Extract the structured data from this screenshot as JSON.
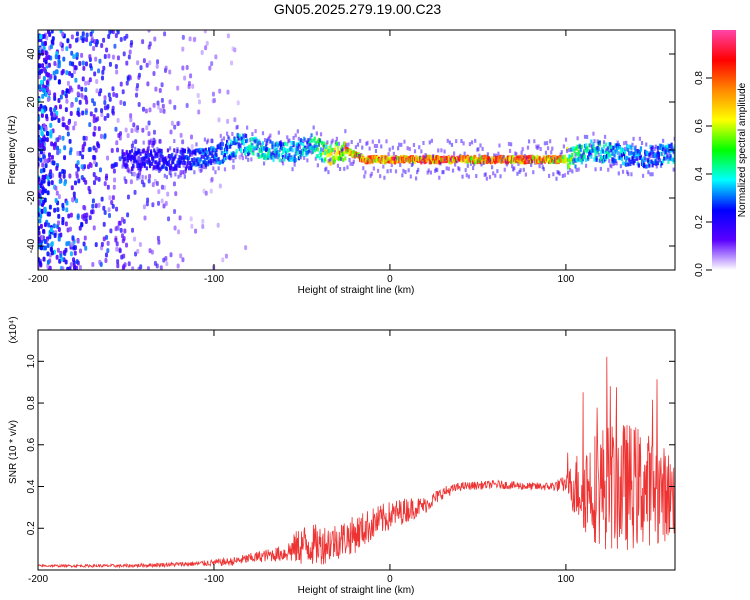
{
  "title": "GN05.2025.279.19.00.C23",
  "chart_data": [
    {
      "type": "heatmap",
      "name": "spectrogram",
      "xlabel": "Height of straight line (km)",
      "ylabel": "Frequency (Hz)",
      "xlim": [
        -200,
        162
      ],
      "ylim": [
        -50,
        50
      ],
      "xticks": [
        -200,
        -100,
        0,
        100
      ],
      "yticks": [
        -40,
        -20,
        0,
        20,
        40
      ],
      "colorbar": {
        "label": "Normalized spectral amplitude",
        "range": [
          0.0,
          1.0
        ],
        "ticks": [
          0.0,
          0.2,
          0.4,
          0.6,
          0.8
        ],
        "tick_labels": [
          "0.0",
          "0.2",
          "0.4",
          "0.6",
          "0.8"
        ],
        "colors": [
          "#ffffff",
          "#5a00ff",
          "#0000ff",
          "#00ffff",
          "#00ff00",
          "#ffff00",
          "#ff8800",
          "#ff0000",
          "#ff44aa"
        ]
      },
      "ridge": {
        "description_points_x": [
          -150,
          -120,
          -100,
          -85,
          -70,
          -55,
          -45,
          -35,
          -25,
          -15,
          0,
          20,
          40,
          60,
          80,
          95,
          105,
          115,
          130,
          145,
          162
        ],
        "description_points_freq": [
          -4,
          -4,
          -3,
          3,
          0,
          -1,
          3,
          -2,
          0,
          -4,
          -4,
          -4,
          -4,
          -4,
          -4,
          -4,
          -3,
          0,
          -2,
          -3,
          -1
        ],
        "description_points_amp": [
          0.25,
          0.28,
          0.35,
          0.4,
          0.45,
          0.4,
          0.45,
          0.7,
          0.85,
          0.9,
          0.95,
          0.9,
          0.95,
          0.9,
          0.95,
          0.9,
          0.5,
          0.45,
          0.4,
          0.35,
          0.4
        ]
      }
    },
    {
      "type": "line",
      "name": "snr",
      "xlabel": "Height of straight line (km)",
      "ylabel": "SNR (10 * v/v)",
      "scale_label": "(x10⁴)",
      "color": "#ee3333",
      "xlim": [
        -200,
        162
      ],
      "ylim": [
        0.0,
        1.15
      ],
      "xticks": [
        -200,
        -100,
        0,
        100
      ],
      "yticks": [
        0.2,
        0.4,
        0.6,
        0.8,
        1.0
      ],
      "ytick_labels": [
        "0.2",
        "0.4",
        "0.6",
        "0.8",
        "1.0"
      ],
      "envelope_x": [
        -200,
        -150,
        -110,
        -90,
        -70,
        -60,
        -50,
        -40,
        -30,
        -20,
        -10,
        0,
        10,
        20,
        30,
        40,
        60,
        80,
        90,
        100,
        105,
        110,
        120,
        130,
        140,
        150,
        162
      ],
      "envelope_mean": [
        0.02,
        0.02,
        0.03,
        0.04,
        0.07,
        0.08,
        0.12,
        0.12,
        0.14,
        0.17,
        0.22,
        0.26,
        0.29,
        0.31,
        0.37,
        0.4,
        0.41,
        0.4,
        0.4,
        0.41,
        0.4,
        0.4,
        0.4,
        0.4,
        0.4,
        0.38,
        0.35
      ],
      "envelope_noise": [
        0.005,
        0.008,
        0.012,
        0.02,
        0.03,
        0.04,
        0.1,
        0.1,
        0.09,
        0.09,
        0.08,
        0.07,
        0.06,
        0.04,
        0.03,
        0.02,
        0.02,
        0.02,
        0.02,
        0.04,
        0.15,
        0.22,
        0.3,
        0.32,
        0.3,
        0.26,
        0.2
      ]
    }
  ]
}
